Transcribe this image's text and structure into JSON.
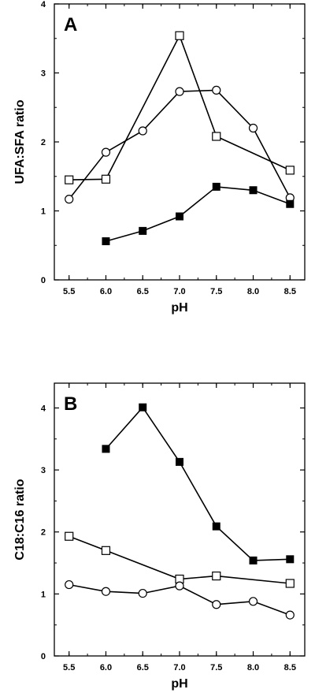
{
  "chart_data": [
    {
      "type": "line",
      "panel_label": "A",
      "xlabel": "pH",
      "ylabel": "UFA:SFA ratio",
      "xlim": [
        5.3,
        8.7
      ],
      "ylim": [
        0,
        4
      ],
      "xticks": [
        "5.5",
        "6.0",
        "6.5",
        "7.0",
        "7.5",
        "8.0",
        "8.5"
      ],
      "yticks": [
        "0",
        "1",
        "2",
        "3",
        "4"
      ],
      "grid": false,
      "series": [
        {
          "marker": "open-square",
          "x": [
            5.5,
            6.0,
            7.0,
            7.5,
            8.5
          ],
          "y": [
            1.45,
            1.46,
            3.54,
            2.08,
            1.59
          ]
        },
        {
          "marker": "open-circle",
          "x": [
            5.5,
            6.0,
            6.5,
            7.0,
            7.5,
            8.0,
            8.5
          ],
          "y": [
            1.17,
            1.85,
            2.16,
            2.73,
            2.75,
            2.2,
            1.19
          ]
        },
        {
          "marker": "filled-square",
          "x": [
            6.0,
            6.5,
            7.0,
            7.5,
            8.0,
            8.5
          ],
          "y": [
            0.56,
            0.71,
            0.92,
            1.35,
            1.3,
            1.1
          ]
        }
      ]
    },
    {
      "type": "line",
      "panel_label": "B",
      "xlabel": "pH",
      "ylabel": "C18:C16 ratio",
      "xlim": [
        5.3,
        8.7
      ],
      "ylim": [
        0,
        4.4
      ],
      "xticks": [
        "5.5",
        "6.0",
        "6.5",
        "7.0",
        "7.5",
        "8.0",
        "8.5"
      ],
      "yticks": [
        "0",
        "1",
        "2",
        "3",
        "4"
      ],
      "grid": false,
      "series": [
        {
          "marker": "filled-square",
          "x": [
            6.0,
            6.5,
            7.0,
            7.5,
            8.0,
            8.5
          ],
          "y": [
            3.34,
            4.01,
            3.13,
            2.09,
            1.54,
            1.56
          ]
        },
        {
          "marker": "open-square",
          "x": [
            5.5,
            6.0,
            7.0,
            7.5,
            8.5
          ],
          "y": [
            1.93,
            1.7,
            1.24,
            1.29,
            1.17
          ]
        },
        {
          "marker": "open-circle",
          "x": [
            5.5,
            6.0,
            6.5,
            7.0,
            7.5,
            8.0,
            8.5
          ],
          "y": [
            1.15,
            1.04,
            1.01,
            1.13,
            0.83,
            0.88,
            0.66
          ]
        }
      ]
    }
  ]
}
